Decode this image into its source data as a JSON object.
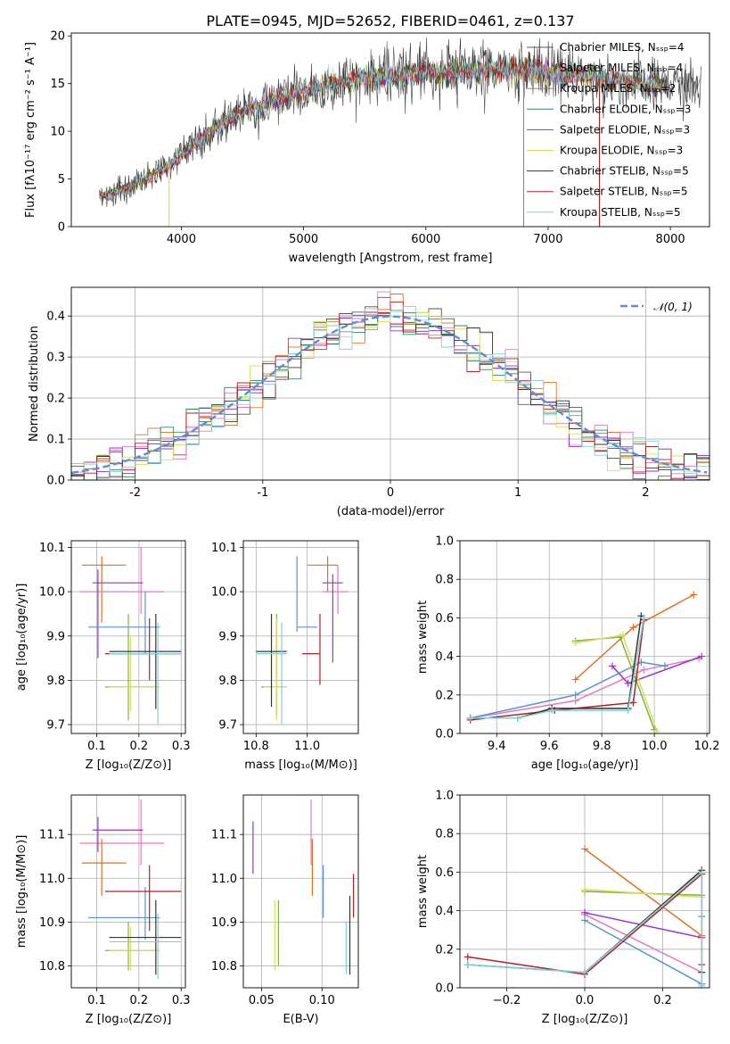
{
  "chart_data": [
    {
      "id": "spectrum",
      "type": "line",
      "title": "PLATE=0945, MJD=52652, FIBERID=0461, z=0.137",
      "xlabel": "wavelength [Angstrom, rest frame]",
      "ylabel": "Flux [fλ10⁻¹⁷ erg cm⁻² s⁻¹ A⁻¹]",
      "xlim": [
        3100,
        8320
      ],
      "ylim": [
        0,
        20.3
      ],
      "xticks": [
        4000,
        5000,
        6000,
        7000,
        8000
      ],
      "yticks": [
        0,
        5,
        10,
        15,
        20
      ],
      "grid": false,
      "legend_position": "top-right",
      "legend": [
        {
          "label": "Chabrier MILES, Nₛₛₚ=4",
          "color": "#555555"
        },
        {
          "label": "Salpeter MILES, Nₛₛₚ=4",
          "color": "#e377c2"
        },
        {
          "label": "Kroupa MILES, Nₛₛₚ=2",
          "color": "#b8860b"
        },
        {
          "label": "Chabrier ELODIE, Nₛₛₚ=3",
          "color": "#2e8b57"
        },
        {
          "label": "Salpeter ELODIE, Nₛₛₚ=3",
          "color": "#9932cc"
        },
        {
          "label": "Kroupa ELODIE, Nₛₛₚ=3",
          "color": "#d4e157"
        },
        {
          "label": "Chabrier STELIB, Nₛₛₚ=5",
          "color": "#333333"
        },
        {
          "label": "Salpeter STELIB, Nₛₛₚ=5",
          "color": "#b22222"
        },
        {
          "label": "Kroupa STELIB, Nₛₛₚ=5",
          "color": "#80d0d8"
        }
      ],
      "trend": {
        "x": [
          3300,
          3500,
          3700,
          3900,
          4100,
          4300,
          4500,
          4700,
          4900,
          5100,
          5300,
          5500,
          5700,
          5900,
          6100,
          6300,
          6500,
          6700,
          6900,
          7100,
          7300,
          7500,
          7700,
          7900,
          8100,
          8250
        ],
        "y": [
          3.0,
          3.8,
          5.0,
          6.5,
          8.5,
          10.5,
          12.0,
          13.0,
          13.8,
          14.5,
          15.2,
          15.6,
          15.8,
          16.0,
          16.2,
          16.4,
          16.5,
          16.5,
          16.3,
          16.0,
          15.7,
          15.4,
          15.0,
          14.8,
          14.7,
          14.8
        ]
      },
      "spikes_down": [
        {
          "x": 3900,
          "y": 0
        },
        {
          "x": 6800,
          "y": 0
        },
        {
          "x": 7420,
          "y": 0
        }
      ]
    },
    {
      "id": "residuals",
      "type": "histogram",
      "xlabel": "(data-model)/error",
      "ylabel": "Normed distribution",
      "xlim": [
        -2.5,
        2.5
      ],
      "ylim": [
        0,
        0.47
      ],
      "xticks": [
        -2,
        -1,
        0,
        1,
        2
      ],
      "yticks": [
        0.0,
        0.1,
        0.2,
        0.3,
        0.4
      ],
      "grid": true,
      "legend_position": "top-right",
      "legend": [
        {
          "label": "𝒩(0, 1)",
          "color": "#5b8fd9",
          "style": "dashed"
        }
      ],
      "bin_width": 0.1,
      "reference_curve": {
        "name": "N(0,1)",
        "mean": 0,
        "sigma": 1
      }
    },
    {
      "id": "age-vs-Z",
      "type": "errorbar",
      "xlabel": "Z [log₁₀(Z/Z⊙)]",
      "ylabel": "age  [log₁₀(age/yr)]",
      "xlim": [
        0.04,
        0.31
      ],
      "ylim": [
        9.68,
        10.115
      ],
      "xticks": [
        0.1,
        0.2,
        0.3
      ],
      "xtick_labels": [
        "0.1",
        "0.2",
        "0.3"
      ],
      "yticks": [
        9.7,
        9.8,
        9.9,
        10.0,
        10.1
      ],
      "ytick_labels": [
        "9.7",
        "9.8",
        "9.9",
        "10.0",
        "10.1"
      ],
      "grid": true,
      "points": [
        {
          "x": 0.112,
          "y": 10.06,
          "xerr": [
            0.065,
            0.17
          ],
          "yerr": [
            9.93,
            10.08
          ],
          "color": "#e07020"
        },
        {
          "x": 0.205,
          "y": 10.0,
          "xerr": [
            0.06,
            0.26
          ],
          "yerr": [
            9.95,
            10.1
          ],
          "color": "#e377c2"
        },
        {
          "x": 0.103,
          "y": 10.02,
          "xerr": [
            0.09,
            0.21
          ],
          "yerr": [
            9.85,
            10.05
          ],
          "color": "#9932cc"
        },
        {
          "x": 0.215,
          "y": 9.92,
          "xerr": [
            0.08,
            0.25
          ],
          "yerr": [
            9.86,
            10.0
          ],
          "color": "#5b8fd9"
        },
        {
          "x": 0.175,
          "y": 9.785,
          "xerr": [
            0.12,
            0.24
          ],
          "yerr": [
            9.71,
            9.95
          ],
          "color": "#80b040"
        },
        {
          "x": 0.18,
          "y": 9.785,
          "xerr": [
            0.13,
            0.25
          ],
          "yerr": [
            9.73,
            9.9
          ],
          "color": "#d4e157"
        },
        {
          "x": 0.225,
          "y": 9.86,
          "xerr": [
            0.12,
            0.3
          ],
          "yerr": [
            9.8,
            9.94
          ],
          "color": "#b22222"
        },
        {
          "x": 0.24,
          "y": 9.865,
          "xerr": [
            0.13,
            0.3
          ],
          "yerr": [
            9.735,
            9.95
          ],
          "color": "#333333"
        },
        {
          "x": 0.245,
          "y": 9.86,
          "xerr": [
            0.13,
            0.3
          ],
          "yerr": [
            9.7,
            9.93
          ],
          "color": "#80d0d8"
        }
      ]
    },
    {
      "id": "age-vs-mass",
      "type": "errorbar",
      "xlabel": "mass [log₁₀(M/M⊙)]",
      "ylabel": "",
      "xlim": [
        10.75,
        11.2
      ],
      "ylim": [
        9.68,
        10.115
      ],
      "xticks": [
        10.8,
        11.0
      ],
      "xtick_labels": [
        "10.8",
        "11.0"
      ],
      "yticks": [
        9.7,
        9.8,
        9.9,
        10.0,
        10.1
      ],
      "ytick_labels": [
        "9.7",
        "9.8",
        "9.9",
        "10.0",
        "10.1"
      ],
      "grid": true,
      "points": [
        {
          "x": 11.08,
          "y": 10.06,
          "xerr": [
            11.0,
            11.12
          ],
          "yerr": [
            10.0,
            10.08
          ],
          "color": "#e07020"
        },
        {
          "x": 11.12,
          "y": 10.0,
          "xerr": [
            11.06,
            11.16
          ],
          "yerr": [
            9.95,
            10.06
          ],
          "color": "#e377c2"
        },
        {
          "x": 11.1,
          "y": 10.02,
          "xerr": [
            11.06,
            11.14
          ],
          "yerr": [
            9.84,
            10.04
          ],
          "color": "#9932cc"
        },
        {
          "x": 10.96,
          "y": 9.92,
          "xerr": [
            10.96,
            11.04
          ],
          "yerr": [
            9.91,
            10.08
          ],
          "color": "#5b8fd9"
        },
        {
          "x": 10.88,
          "y": 9.785,
          "xerr": [
            10.82,
            10.92
          ],
          "yerr": [
            9.72,
            9.95
          ],
          "color": "#80b040"
        },
        {
          "x": 10.88,
          "y": 9.785,
          "xerr": [
            10.83,
            10.92
          ],
          "yerr": [
            9.71,
            9.94
          ],
          "color": "#d4e157"
        },
        {
          "x": 11.05,
          "y": 9.86,
          "xerr": [
            10.98,
            11.05
          ],
          "yerr": [
            9.79,
            9.95
          ],
          "color": "#b22222"
        },
        {
          "x": 10.86,
          "y": 9.865,
          "xerr": [
            10.8,
            10.92
          ],
          "yerr": [
            9.74,
            9.95
          ],
          "color": "#333333"
        },
        {
          "x": 10.9,
          "y": 9.86,
          "xerr": [
            10.8,
            10.92
          ],
          "yerr": [
            9.7,
            9.93
          ],
          "color": "#80d0d8"
        }
      ]
    },
    {
      "id": "weight-vs-age",
      "type": "line",
      "xlabel": "age  [log₁₀(age/yr)]",
      "ylabel": "mass weight",
      "xlim": [
        9.26,
        10.21
      ],
      "ylim": [
        0.0,
        1.0
      ],
      "xticks": [
        9.4,
        9.6,
        9.8,
        10.0,
        10.2
      ],
      "xtick_labels": [
        "9.4",
        "9.6",
        "9.8",
        "10.0",
        "10.2"
      ],
      "yticks": [
        0.0,
        0.2,
        0.4,
        0.6,
        0.8,
        1.0
      ],
      "ytick_labels": [
        "0.0",
        "0.2",
        "0.4",
        "0.6",
        "0.8",
        "1.0"
      ],
      "grid": true,
      "series": [
        {
          "color": "#e07020",
          "x": [
            9.7,
            9.92,
            10.15
          ],
          "y": [
            0.28,
            0.55,
            0.72
          ]
        },
        {
          "color": "#e377c2",
          "x": [
            9.3,
            9.7,
            9.96,
            10.17
          ],
          "y": [
            0.08,
            0.17,
            0.33,
            0.39
          ]
        },
        {
          "color": "#9932cc",
          "x": [
            9.84,
            9.9,
            10.18
          ],
          "y": [
            0.35,
            0.26,
            0.4
          ]
        },
        {
          "color": "#5b8fd9",
          "x": [
            9.3,
            9.7,
            9.95,
            10.04
          ],
          "y": [
            0.08,
            0.2,
            0.37,
            0.35
          ]
        },
        {
          "color": "#80b040",
          "x": [
            9.7,
            9.87,
            10.0
          ],
          "y": [
            0.48,
            0.5,
            0.02
          ]
        },
        {
          "color": "#d4e157",
          "x": [
            9.7,
            9.88,
            10.01
          ],
          "y": [
            0.47,
            0.51,
            0.01
          ]
        },
        {
          "color": "#b22222",
          "x": [
            9.3,
            9.62,
            9.92,
            9.96
          ],
          "y": [
            0.07,
            0.12,
            0.16,
            0.59
          ]
        },
        {
          "color": "#333333",
          "x": [
            9.3,
            9.48,
            9.61,
            9.9,
            9.95
          ],
          "y": [
            0.08,
            0.08,
            0.13,
            0.13,
            0.61
          ]
        },
        {
          "color": "#80d0d8",
          "x": [
            9.3,
            9.48,
            9.61,
            9.9,
            9.96
          ],
          "y": [
            0.08,
            0.08,
            0.12,
            0.12,
            0.6
          ]
        }
      ]
    },
    {
      "id": "mass-vs-Z",
      "type": "errorbar",
      "xlabel": "Z [log₁₀(Z/Z⊙)]",
      "ylabel": "mass [log₁₀(M/M⊙)]",
      "xlim": [
        0.04,
        0.31
      ],
      "ylim": [
        10.75,
        11.19
      ],
      "xticks": [
        0.1,
        0.2,
        0.3
      ],
      "xtick_labels": [
        "0.1",
        "0.2",
        "0.3"
      ],
      "yticks": [
        10.8,
        10.9,
        11.0,
        11.1
      ],
      "ytick_labels": [
        "10.8",
        "10.9",
        "11.0",
        "11.1"
      ],
      "grid": true,
      "points": [
        {
          "x": 0.112,
          "y": 11.035,
          "xerr": [
            0.065,
            0.17
          ],
          "yerr": [
            10.96,
            11.09
          ],
          "color": "#e07020"
        },
        {
          "x": 0.205,
          "y": 11.08,
          "xerr": [
            0.06,
            0.26
          ],
          "yerr": [
            11.03,
            11.18
          ],
          "color": "#e377c2"
        },
        {
          "x": 0.103,
          "y": 11.11,
          "xerr": [
            0.09,
            0.21
          ],
          "yerr": [
            11.06,
            11.14
          ],
          "color": "#9932cc"
        },
        {
          "x": 0.215,
          "y": 10.91,
          "xerr": [
            0.08,
            0.25
          ],
          "yerr": [
            10.86,
            10.98
          ],
          "color": "#5b8fd9"
        },
        {
          "x": 0.175,
          "y": 10.835,
          "xerr": [
            0.12,
            0.24
          ],
          "yerr": [
            10.79,
            10.9
          ],
          "color": "#80b040"
        },
        {
          "x": 0.18,
          "y": 10.835,
          "xerr": [
            0.13,
            0.25
          ],
          "yerr": [
            10.79,
            10.89
          ],
          "color": "#d4e157"
        },
        {
          "x": 0.225,
          "y": 10.97,
          "xerr": [
            0.12,
            0.3
          ],
          "yerr": [
            10.88,
            11.03
          ],
          "color": "#b22222"
        },
        {
          "x": 0.24,
          "y": 10.865,
          "xerr": [
            0.13,
            0.3
          ],
          "yerr": [
            10.78,
            10.95
          ],
          "color": "#333333"
        },
        {
          "x": 0.245,
          "y": 10.855,
          "xerr": [
            0.13,
            0.3
          ],
          "yerr": [
            10.77,
            10.92
          ],
          "color": "#80d0d8"
        }
      ]
    },
    {
      "id": "mass-vs-ebv",
      "type": "errorbar",
      "xlabel": "E(B-V)",
      "ylabel": "",
      "xlim": [
        0.035,
        0.13
      ],
      "ylim": [
        10.75,
        11.19
      ],
      "xticks": [
        0.05,
        0.1
      ],
      "xtick_labels": [
        "0.05",
        "0.10"
      ],
      "yticks": [
        10.8,
        10.9,
        11.0,
        11.1
      ],
      "ytick_labels": [
        "10.8",
        "10.9",
        "11.0",
        "11.1"
      ],
      "grid": true,
      "points": [
        {
          "x": 0.092,
          "y": 11.04,
          "yerr": [
            10.96,
            11.09
          ],
          "color": "#e07020"
        },
        {
          "x": 0.091,
          "y": 11.1,
          "yerr": [
            11.03,
            11.18
          ],
          "color": "#e377c2"
        },
        {
          "x": 0.043,
          "y": 11.07,
          "yerr": [
            11.01,
            11.13
          ],
          "color": "#9932cc"
        },
        {
          "x": 0.101,
          "y": 10.97,
          "yerr": [
            10.91,
            11.03
          ],
          "color": "#5b8fd9"
        },
        {
          "x": 0.064,
          "y": 10.87,
          "yerr": [
            10.8,
            10.95
          ],
          "color": "#80b040"
        },
        {
          "x": 0.061,
          "y": 10.87,
          "yerr": [
            10.79,
            10.95
          ],
          "color": "#d4e157"
        },
        {
          "x": 0.126,
          "y": 10.96,
          "yerr": [
            10.91,
            11.01
          ],
          "color": "#b22222"
        },
        {
          "x": 0.123,
          "y": 10.86,
          "yerr": [
            10.78,
            10.96
          ],
          "color": "#333333"
        },
        {
          "x": 0.12,
          "y": 10.85,
          "yerr": [
            10.78,
            10.9
          ],
          "color": "#80d0d8"
        }
      ]
    },
    {
      "id": "weight-vs-Z",
      "type": "line",
      "xlabel": "Z [log₁₀(Z/Z⊙)]",
      "ylabel": "mass weight",
      "xlim": [
        -0.32,
        0.32
      ],
      "ylim": [
        0.0,
        1.0
      ],
      "xticks": [
        -0.2,
        0.0,
        0.2
      ],
      "xtick_labels": [
        "−0.2",
        "0.0",
        "0.2"
      ],
      "yticks": [
        0.0,
        0.2,
        0.4,
        0.6,
        0.8,
        1.0
      ],
      "ytick_labels": [
        "0.0",
        "0.2",
        "0.4",
        "0.6",
        "0.8",
        "1.0"
      ],
      "grid": true,
      "series": [
        {
          "color": "#e07020",
          "x": [
            0.0,
            0.3
          ],
          "y": [
            0.72,
            0.27
          ]
        },
        {
          "color": "#e377c2",
          "x": [
            0.0,
            0.3
          ],
          "y": [
            0.38,
            0.08
          ]
        },
        {
          "color": "#9932cc",
          "x": [
            0.0,
            0.3
          ],
          "y": [
            0.39,
            0.26
          ]
        },
        {
          "color": "#5b8fd9",
          "x": [
            0.0,
            0.3,
            0.3
          ],
          "y": [
            0.35,
            0.02,
            0.37
          ]
        },
        {
          "color": "#80b040",
          "x": [
            0.0,
            0.3
          ],
          "y": [
            0.5,
            0.48
          ]
        },
        {
          "color": "#d4e157",
          "x": [
            0.0,
            0.3
          ],
          "y": [
            0.51,
            0.47
          ]
        },
        {
          "color": "#b22222",
          "x": [
            -0.3,
            0.0,
            0.3,
            0.3
          ],
          "y": [
            0.16,
            0.07,
            0.59,
            0.12
          ]
        },
        {
          "color": "#333333",
          "x": [
            -0.3,
            0.0,
            0.3,
            0.3
          ],
          "y": [
            0.12,
            0.08,
            0.61,
            0.08
          ]
        },
        {
          "color": "#80d0d8",
          "x": [
            -0.3,
            0.0,
            0.3,
            0.3
          ],
          "y": [
            0.12,
            0.08,
            0.6,
            0.01
          ]
        }
      ]
    }
  ]
}
